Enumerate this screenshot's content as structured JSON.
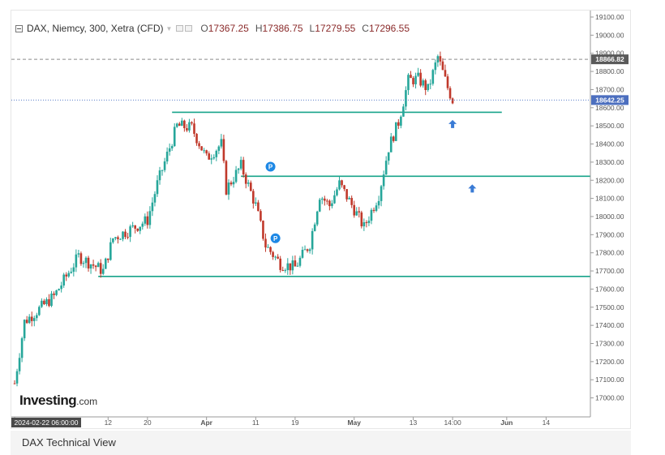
{
  "header": {
    "symbol": "DAX, Niemcy, 300, Xetra (CFD)",
    "o_label": "O",
    "o_value": "17367.25",
    "h_label": "H",
    "h_value": "17386.75",
    "l_label": "L",
    "l_value": "17279.55",
    "c_label": "C",
    "c_value": "17296.55"
  },
  "logo": {
    "text": "Investing",
    "suffix": ".com"
  },
  "caption": "DAX Technical View",
  "chart_data": {
    "type": "candlestick",
    "title": "",
    "xlabel": "",
    "ylabel": "",
    "ylim": [
      16940,
      19100
    ],
    "y_ticks": [
      17000,
      17100,
      17200,
      17300,
      17400,
      17500,
      17600,
      17700,
      17800,
      17900,
      18000,
      18100,
      18200,
      18300,
      18400,
      18500,
      18600,
      18700,
      18800,
      18900,
      19000,
      19100
    ],
    "y_tick_labels": [
      "17000.00",
      "17100.00",
      "17200.00",
      "17300.00",
      "17400.00",
      "17500.00",
      "17600.00",
      "17700.00",
      "17800.00",
      "17900.00",
      "18000.00",
      "18100.00",
      "18200.00",
      "18300.00",
      "18400.00",
      "18500.00",
      "18600.00",
      "18700.00",
      "18800.00",
      "18900.00",
      "19000.00",
      "19100.00"
    ],
    "x_range": [
      "2024-02-22",
      "2024-06-18"
    ],
    "x_ticks": [
      {
        "label": "2024-02-22 06:00:00",
        "date": "2024-02-22",
        "highlight": true
      },
      {
        "label": "12",
        "date": "2024-03-12"
      },
      {
        "label": "20",
        "date": "2024-03-20"
      },
      {
        "label": "Apr",
        "date": "2024-04-01",
        "bold": true
      },
      {
        "label": "11",
        "date": "2024-04-11"
      },
      {
        "label": "19",
        "date": "2024-04-19"
      },
      {
        "label": "May",
        "date": "2024-05-01",
        "bold": true
      },
      {
        "label": "13",
        "date": "2024-05-13"
      },
      {
        "label": "14:00",
        "date": "2024-05-21"
      },
      {
        "label": "Jun",
        "date": "2024-06-01",
        "bold": true
      },
      {
        "label": "14",
        "date": "2024-06-09"
      }
    ],
    "price_markers": [
      {
        "value": 18866.82,
        "label": "18866.82",
        "style": "dashed",
        "color": "#8a8a8a",
        "label_color": "#5a5a5a"
      },
      {
        "value": 18642.25,
        "label": "18642.25",
        "style": "dotted",
        "color": "#5b7ec9",
        "label_color": "#4c6fbf"
      }
    ],
    "support_lines": [
      {
        "start": [
          "2024-03-25",
          18575
        ],
        "end": [
          "2024-05-31",
          18575
        ],
        "color": "#17a38a"
      },
      {
        "start": [
          "2024-04-08",
          18222
        ],
        "end": [
          "2024-06-18",
          18222
        ],
        "color": "#17a38a"
      },
      {
        "start": [
          "2024-03-10",
          17670
        ],
        "end": [
          "2024-06-18",
          17670
        ],
        "color": "#17a38a"
      }
    ],
    "annotations": [
      {
        "type": "arrow-up",
        "date": "2024-05-21",
        "value": 18510,
        "color": "#3a7bd5"
      },
      {
        "type": "arrow-up",
        "date": "2024-05-25",
        "value": 18155,
        "color": "#3a7bd5"
      },
      {
        "type": "pivot",
        "text": "P",
        "date": "2024-04-14",
        "value": 18275,
        "color": "#1e88e5"
      },
      {
        "type": "pivot",
        "text": "P",
        "date": "2024-04-15",
        "value": 17880,
        "color": "#1e88e5"
      }
    ],
    "colors": {
      "up": "#26a69a",
      "down": "#c0392b",
      "grid": "#e9e9e9"
    },
    "series": [
      {
        "keypoints": [
          [
            "2024-02-22",
            17080
          ],
          [
            "2024-02-24",
            17420
          ],
          [
            "2024-03-01",
            17560
          ],
          [
            "2024-03-06",
            17780
          ],
          [
            "2024-03-11",
            17700
          ],
          [
            "2024-03-13",
            17880
          ],
          [
            "2024-03-18",
            17950
          ],
          [
            "2024-03-20",
            17980
          ],
          [
            "2024-03-22",
            18180
          ],
          [
            "2024-03-26",
            18500
          ],
          [
            "2024-03-29",
            18490
          ],
          [
            "2024-04-01",
            18320
          ],
          [
            "2024-04-04",
            18400
          ],
          [
            "2024-04-05",
            18150
          ],
          [
            "2024-04-08",
            18280
          ],
          [
            "2024-04-11",
            18060
          ],
          [
            "2024-04-13",
            17840
          ],
          [
            "2024-04-16",
            17740
          ],
          [
            "2024-04-19",
            17720
          ],
          [
            "2024-04-22",
            17850
          ],
          [
            "2024-04-24",
            18120
          ],
          [
            "2024-04-26",
            18060
          ],
          [
            "2024-04-28",
            18180
          ],
          [
            "2024-05-01",
            18040
          ],
          [
            "2024-05-03",
            17940
          ],
          [
            "2024-05-06",
            18120
          ],
          [
            "2024-05-08",
            18380
          ],
          [
            "2024-05-10",
            18520
          ],
          [
            "2024-05-12",
            18750
          ],
          [
            "2024-05-14",
            18760
          ],
          [
            "2024-05-16",
            18700
          ],
          [
            "2024-05-18",
            18880
          ],
          [
            "2024-05-20",
            18710
          ],
          [
            "2024-05-21",
            18642
          ]
        ]
      }
    ]
  }
}
